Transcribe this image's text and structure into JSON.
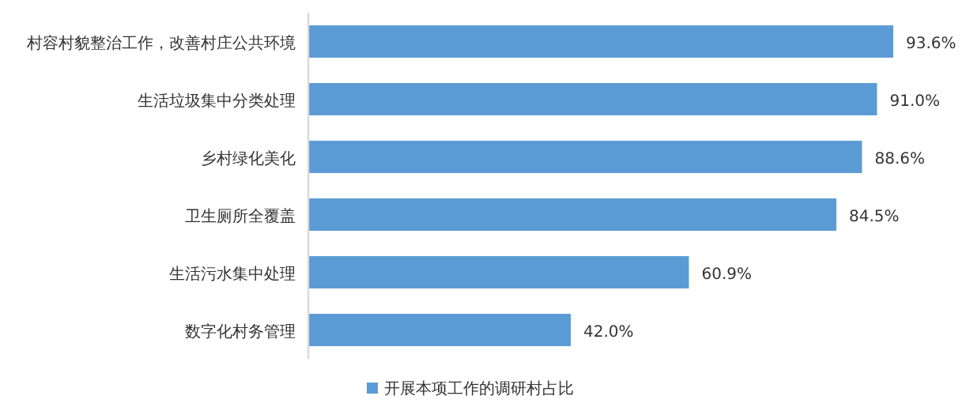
{
  "chart_data": {
    "type": "bar",
    "orientation": "horizontal",
    "categories": [
      "村容村貌整治工作，改善村庄公共环境",
      "生活垃圾集中分类处理",
      "乡村绿化美化",
      "卫生厕所全覆盖",
      "生活污水集中处理",
      "数字化村务管理"
    ],
    "series": [
      {
        "name": "开展本项工作的调研村占比",
        "color": "#5b9bd5",
        "values": [
          93.6,
          91.0,
          88.6,
          84.5,
          60.9,
          42.0
        ],
        "value_labels": [
          "93.6%",
          "91.0%",
          "88.6%",
          "84.5%",
          "60.9%",
          "42.0%"
        ]
      }
    ],
    "legend": "bottom"
  }
}
